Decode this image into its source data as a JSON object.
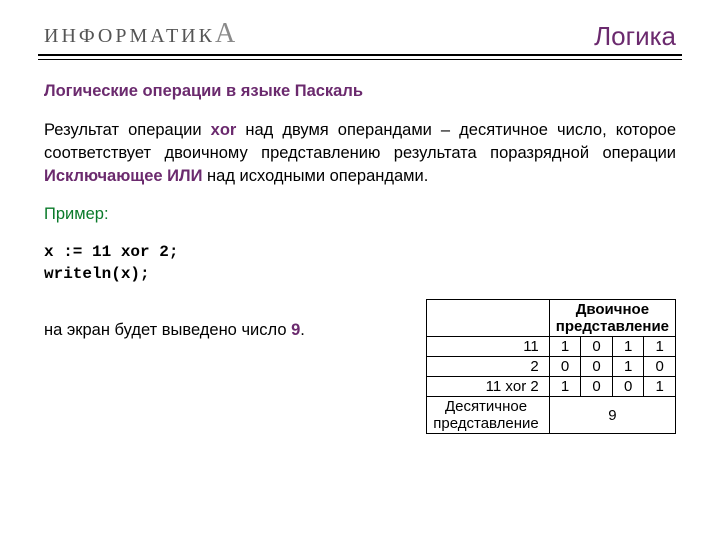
{
  "header": {
    "logo_prefix": "ИНФОРМАТИК",
    "logo_suffix": "А",
    "title": "Логика"
  },
  "subtitle": "Логические операции в языке Паскаль",
  "para": {
    "t1": "Результат операции ",
    "kw1": "xor",
    "t2": " над двумя операндами – десятичное число, которое соответствует двоичному представлению результата поразрядной операции ",
    "kw2": "Исключающее ИЛИ",
    "t3": " над исходными операндами."
  },
  "example_label": "Пример:",
  "code": {
    "line1": "x := 11 xor 2;",
    "line2": "writeln(x);"
  },
  "output": {
    "t1": "на экран будет выведено число ",
    "val": "9",
    "t2": "."
  },
  "table": {
    "bin_header": "Двоичное представление",
    "rows": [
      {
        "label": "11",
        "bits": [
          "1",
          "0",
          "1",
          "1"
        ]
      },
      {
        "label": "2",
        "bits": [
          "0",
          "0",
          "1",
          "0"
        ]
      },
      {
        "label": "11 xor 2",
        "bits": [
          "1",
          "0",
          "0",
          "1"
        ]
      }
    ],
    "dec_label_l1": "Десятичное",
    "dec_label_l2": "представление",
    "dec_value": "9"
  },
  "colors": {
    "accent": "#6b2a6e",
    "green": "#0a7a2a",
    "text": "#000000",
    "bg": "#ffffff"
  }
}
